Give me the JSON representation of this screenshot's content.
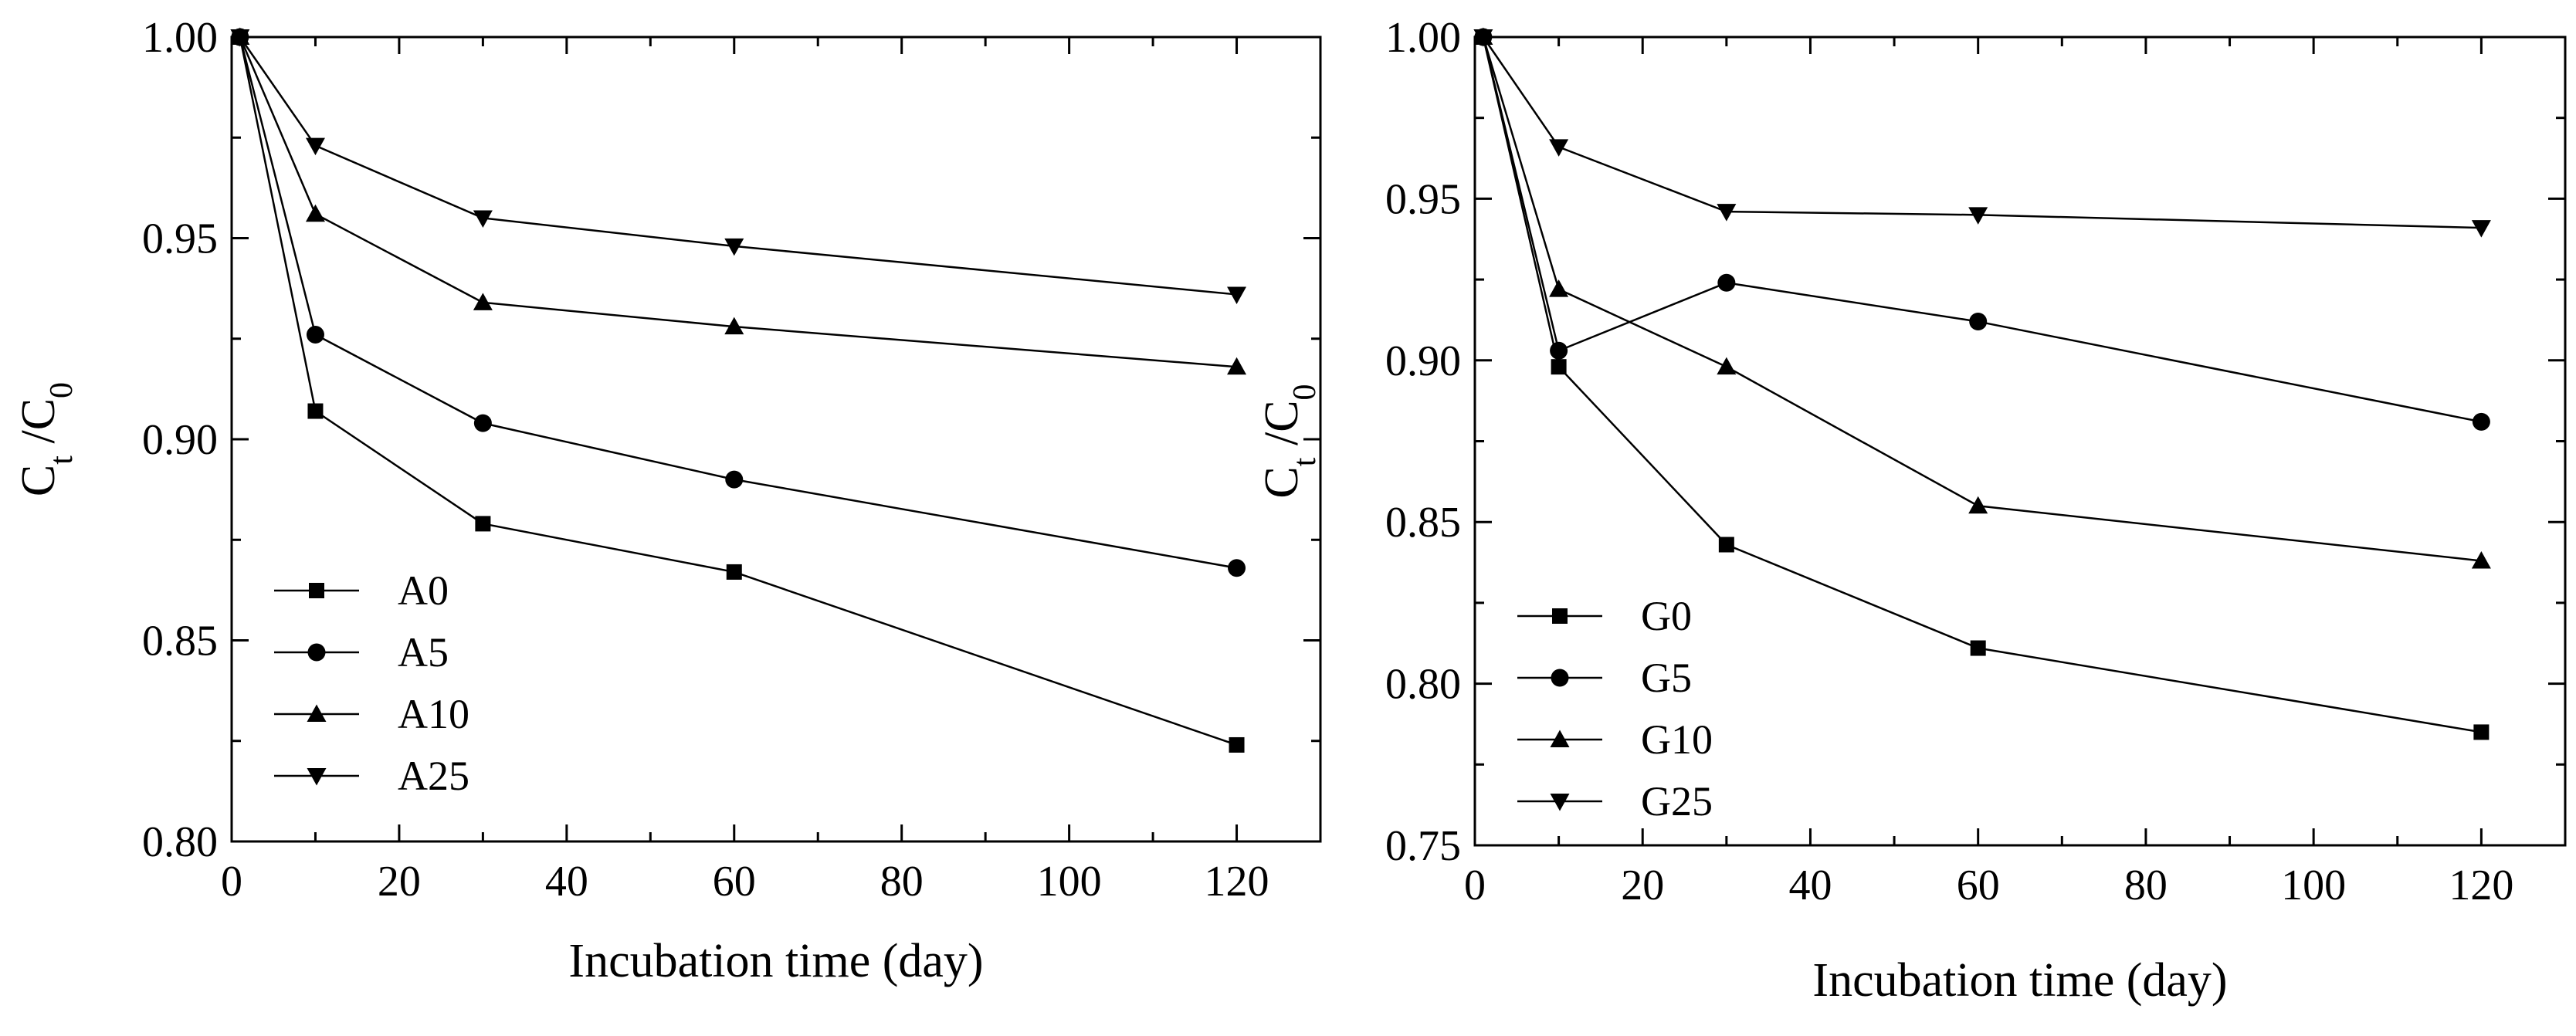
{
  "chart_data": [
    {
      "type": "line",
      "title": "",
      "xlabel": "Incubation time (day)",
      "ylabel": {
        "base1": "C",
        "sub1": "t",
        "sep": " /",
        "base2": "C",
        "sub2": "0"
      },
      "xlim": [
        0,
        130
      ],
      "ylim": [
        0.8,
        1.0
      ],
      "xticks": [
        0,
        20,
        40,
        60,
        80,
        100,
        120
      ],
      "xtick_labels": [
        "0",
        "20",
        "40",
        "60",
        "80",
        "100",
        "120"
      ],
      "yticks": [
        0.8,
        0.85,
        0.9,
        0.95,
        1.0
      ],
      "ytick_labels": [
        "0.80",
        "0.85",
        "0.90",
        "0.95",
        "1.00"
      ],
      "legend_position": "bottom-left",
      "x": [
        1,
        10,
        30,
        60,
        120
      ],
      "series": [
        {
          "name": "A0",
          "marker": "square",
          "values": [
            1.0,
            0.907,
            0.879,
            0.867,
            0.824
          ]
        },
        {
          "name": "A5",
          "marker": "circle",
          "values": [
            1.0,
            0.926,
            0.904,
            0.89,
            0.868
          ]
        },
        {
          "name": "A10",
          "marker": "triangle-up",
          "values": [
            1.0,
            0.956,
            0.934,
            0.928,
            0.918
          ]
        },
        {
          "name": "A25",
          "marker": "triangle-down",
          "values": [
            1.0,
            0.973,
            0.955,
            0.948,
            0.936
          ]
        }
      ]
    },
    {
      "type": "line",
      "title": "",
      "xlabel": "Incubation time (day)",
      "ylabel": {
        "base1": "C",
        "sub1": "t",
        "sep": " /",
        "base2": "C",
        "sub2": "0"
      },
      "xlim": [
        0,
        130
      ],
      "ylim": [
        0.75,
        1.0
      ],
      "xticks": [
        0,
        20,
        40,
        60,
        80,
        100,
        120
      ],
      "xtick_labels": [
        "0",
        "20",
        "40",
        "60",
        "80",
        "100",
        "120"
      ],
      "yticks": [
        0.75,
        0.8,
        0.85,
        0.9,
        0.95,
        1.0
      ],
      "ytick_labels": [
        "0.75",
        "0.80",
        "0.85",
        "0.90",
        "0.95",
        "1.00"
      ],
      "legend_position": "bottom-left",
      "x": [
        1,
        10,
        30,
        60,
        120
      ],
      "series": [
        {
          "name": "G0",
          "marker": "square",
          "values": [
            1.0,
            0.898,
            0.843,
            0.811,
            0.785
          ]
        },
        {
          "name": "G5",
          "marker": "circle",
          "values": [
            1.0,
            0.903,
            0.924,
            0.912,
            0.881
          ]
        },
        {
          "name": "G10",
          "marker": "triangle-up",
          "values": [
            1.0,
            0.922,
            0.898,
            0.855,
            0.838
          ]
        },
        {
          "name": "G25",
          "marker": "triangle-down",
          "values": [
            1.0,
            0.966,
            0.946,
            0.945,
            0.941
          ]
        }
      ]
    }
  ]
}
